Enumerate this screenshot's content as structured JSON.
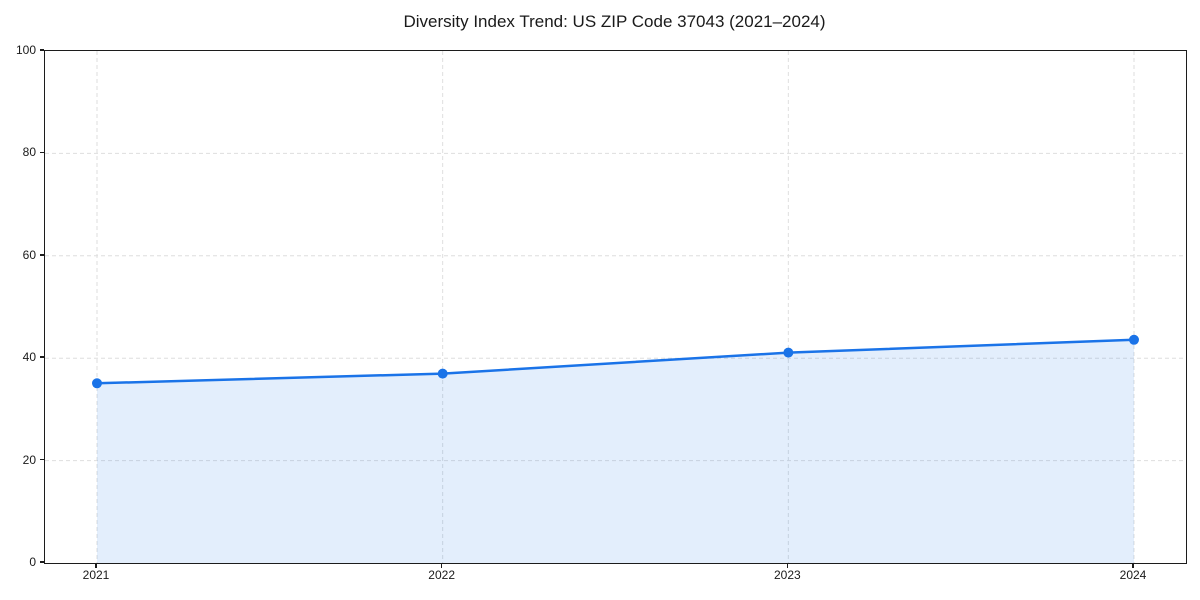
{
  "chart_data": {
    "type": "area",
    "title": "Diversity Index Trend: US ZIP Code 37043 (2021–2024)",
    "x": [
      "2021",
      "2022",
      "2023",
      "2024"
    ],
    "values": [
      35.1,
      37.0,
      41.1,
      43.6
    ],
    "xlabel": "",
    "ylabel": "",
    "ylim": [
      0,
      100
    ],
    "yticks": [
      0,
      20,
      40,
      60,
      80,
      100
    ],
    "grid": true,
    "grid_style": "dashed",
    "legend": "none",
    "colors": {
      "line": "#1a73e8",
      "marker": "#1a73e8",
      "fill": "rgba(26,115,232,0.12)",
      "grid": "#dedede",
      "spine": "#1c1c1c",
      "text": "#1a1a1a",
      "background": "#ffffff"
    }
  }
}
